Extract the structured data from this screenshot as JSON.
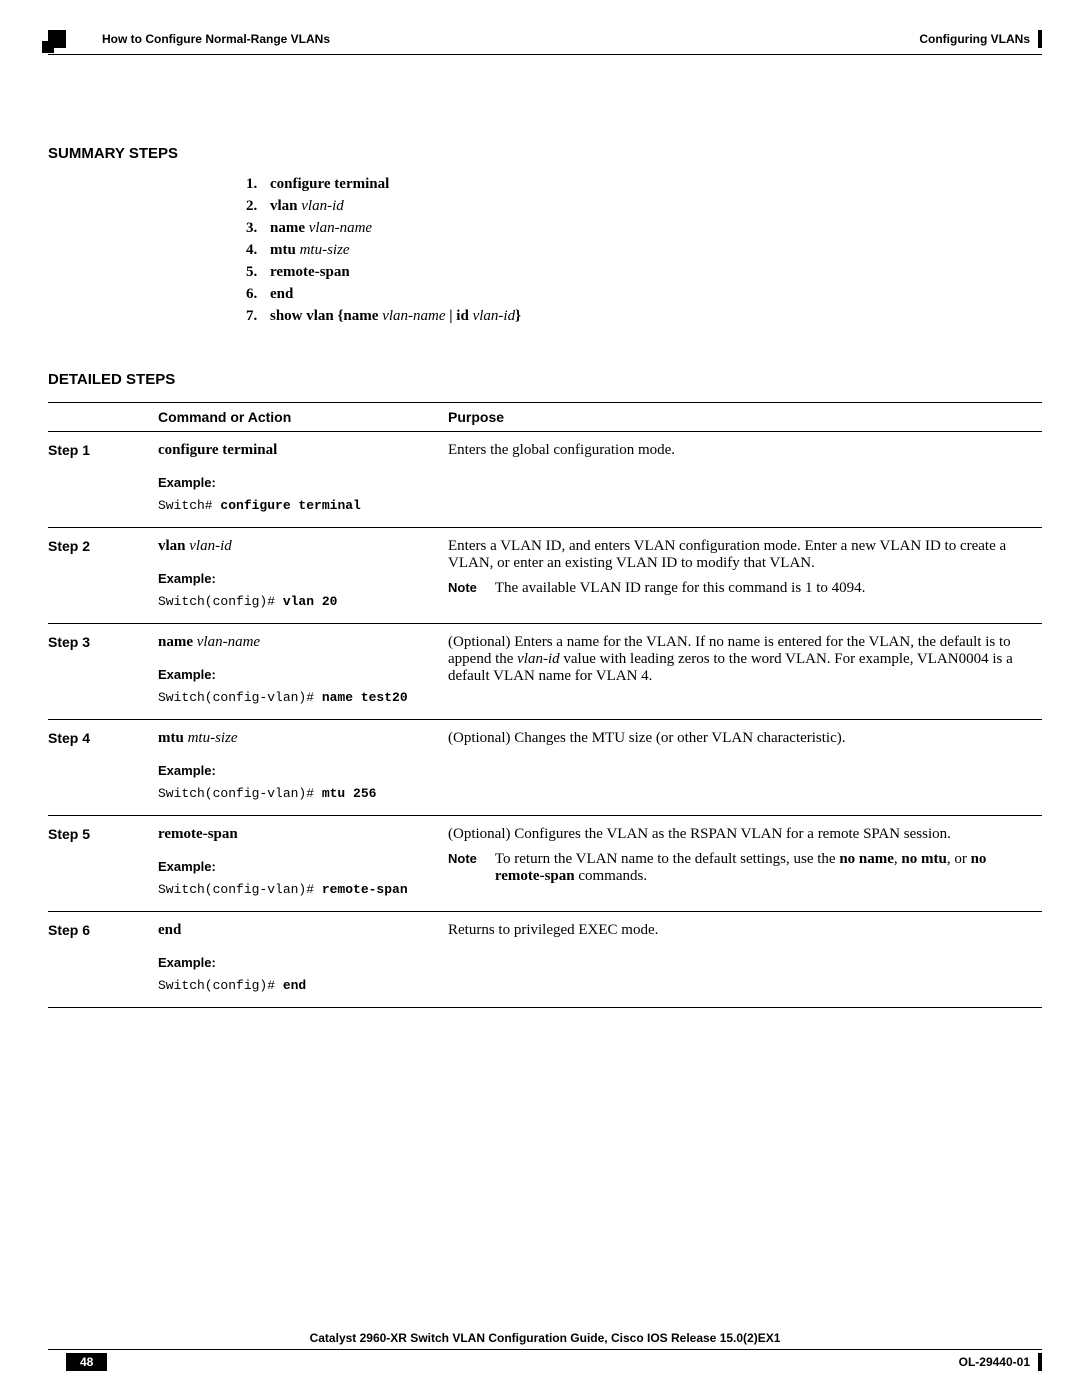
{
  "header": {
    "chapter": "Configuring VLANs",
    "section": "How to Configure Normal-Range VLANs"
  },
  "summary": {
    "heading": "SUMMARY STEPS",
    "items": [
      {
        "bold": "configure terminal",
        "italic": ""
      },
      {
        "bold": "vlan",
        "italic": " vlan-id"
      },
      {
        "bold": "name",
        "italic": " vlan-name"
      },
      {
        "bold": "mtu",
        "italic": " mtu-size"
      },
      {
        "bold": "remote-span",
        "italic": ""
      },
      {
        "bold": "end",
        "italic": ""
      },
      {
        "full": "show vlan {name vlan-name | id vlan-id}",
        "bold": "show vlan {name ",
        "italic": "vlan-name",
        "bold2": " | id ",
        "italic2": "vlan-id",
        "bold3": "}"
      }
    ]
  },
  "detailed": {
    "heading": "DETAILED STEPS",
    "columns": {
      "step": "",
      "cmd": "Command or Action",
      "purpose": "Purpose"
    },
    "example_label": "Example:",
    "note_label": "Note",
    "steps": [
      {
        "step": "Step 1",
        "cmd_bold": "configure terminal",
        "cmd_italic": "",
        "code_plain": "Switch# ",
        "code_bold": "configure terminal",
        "purpose": "Enters the global configuration mode.",
        "note": ""
      },
      {
        "step": "Step 2",
        "cmd_bold": "vlan",
        "cmd_italic": " vlan-id",
        "code_plain": "Switch(config)# ",
        "code_bold": "vlan 20",
        "purpose": "Enters a VLAN ID, and enters VLAN configuration mode. Enter a new VLAN ID to create a VLAN, or enter an existing VLAN ID to modify that VLAN.",
        "note": "The available VLAN ID range for this command is 1 to 4094."
      },
      {
        "step": "Step 3",
        "cmd_bold": "name",
        "cmd_italic": " vlan-name",
        "code_plain": "Switch(config-vlan)# ",
        "code_bold": "name test20",
        "purpose_html": "(Optional) Enters a name for the VLAN. If no name is entered for the VLAN, the default is to append the <span class='i'>vlan-id</span> value with leading zeros to the word VLAN. For example, VLAN0004 is a default VLAN name for VLAN 4.",
        "note": ""
      },
      {
        "step": "Step 4",
        "cmd_bold": "mtu",
        "cmd_italic": " mtu-size",
        "code_plain": "Switch(config-vlan)# ",
        "code_bold": "mtu 256",
        "purpose": "(Optional) Changes the MTU size (or other VLAN characteristic).",
        "note": ""
      },
      {
        "step": "Step 5",
        "cmd_bold": "remote-span",
        "cmd_italic": "",
        "code_plain": "Switch(config-vlan)# ",
        "code_bold": "remote-span",
        "purpose": "(Optional) Configures the VLAN as the RSPAN VLAN for a remote SPAN session.",
        "note_html": "To return the VLAN name to the default settings, use the <span class='b'>no name</span>, <span class='b'>no mtu</span>, or <span class='b'>no remote-span</span> commands."
      },
      {
        "step": "Step 6",
        "cmd_bold": "end",
        "cmd_italic": "",
        "code_plain": "Switch(config)# ",
        "code_bold": "end",
        "purpose": "Returns to privileged EXEC mode.",
        "note": ""
      }
    ]
  },
  "footer": {
    "title": "Catalyst 2960-XR Switch VLAN Configuration Guide, Cisco IOS Release 15.0(2)EX1",
    "page": "48",
    "docid": "OL-29440-01"
  }
}
